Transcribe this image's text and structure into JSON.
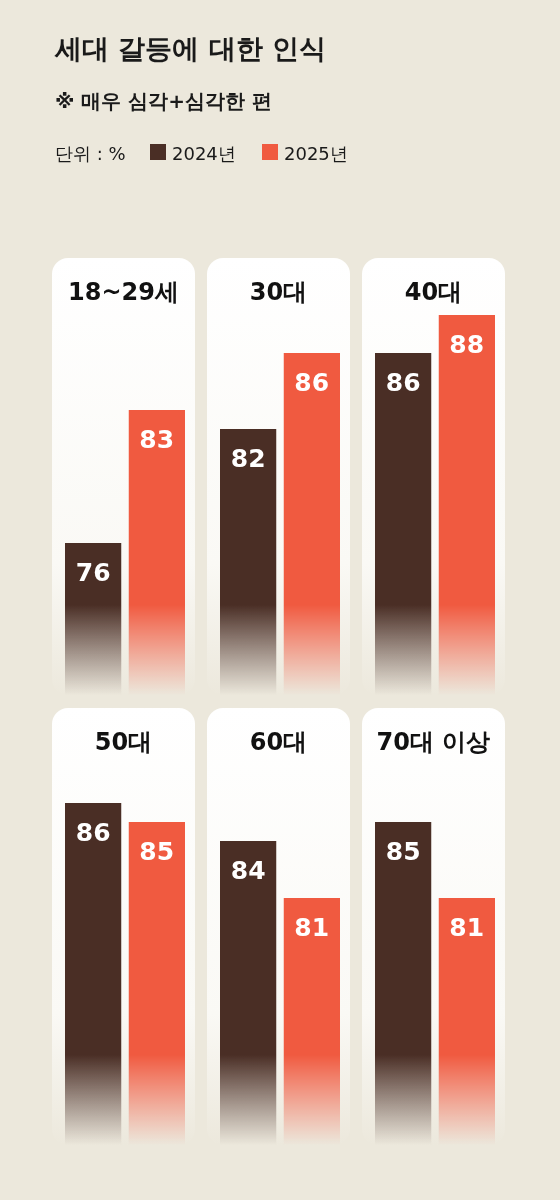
{
  "chart_data": [
    {
      "type": "bar",
      "title": "18~29세",
      "annotations": [
        "세대 갈등에 대한 인식",
        "※ 매우 심각+심각한 편",
        "단위 : %"
      ],
      "legend": "top",
      "data_labels": true,
      "ylim": [
        68,
        91
      ],
      "categories": [
        null
      ],
      "series": [
        {
          "name": "2024년",
          "color": "#4a2e25",
          "values": [
            76
          ]
        },
        {
          "name": "2025년",
          "color": "#f05a40",
          "values": [
            83
          ]
        }
      ]
    },
    {
      "type": "bar",
      "title": "30대",
      "data_labels": true,
      "ylim": [
        68,
        91
      ],
      "categories": [
        null
      ],
      "series": [
        {
          "color": "#4a2e25",
          "values": [
            82
          ]
        },
        {
          "color": "#f05a40",
          "values": [
            86
          ]
        }
      ]
    },
    {
      "type": "bar",
      "title": "40대",
      "data_labels": true,
      "ylim": [
        68,
        91
      ],
      "categories": [
        null
      ],
      "series": [
        {
          "color": "#4a2e25",
          "values": [
            86
          ]
        },
        {
          "color": "#f05a40",
          "values": [
            88
          ]
        }
      ]
    },
    {
      "type": "bar",
      "title": "50대",
      "data_labels": true,
      "ylim": [
        68,
        91
      ],
      "categories": [
        null
      ],
      "series": [
        {
          "color": "#4a2e25",
          "values": [
            86
          ]
        },
        {
          "color": "#f05a40",
          "values": [
            85
          ]
        }
      ]
    },
    {
      "type": "bar",
      "title": "60대",
      "data_labels": true,
      "ylim": [
        68,
        91
      ],
      "categories": [
        null
      ],
      "series": [
        {
          "color": "#4a2e25",
          "values": [
            84
          ]
        },
        {
          "color": "#f05a40",
          "values": [
            81
          ]
        }
      ]
    },
    {
      "type": "bar",
      "title": "70대 이상",
      "data_labels": true,
      "ylim": [
        68,
        91
      ],
      "categories": [
        null
      ],
      "series": [
        {
          "color": "#4a2e25",
          "values": [
            85
          ]
        },
        {
          "color": "#f05a40",
          "values": [
            81
          ]
        }
      ]
    }
  ]
}
